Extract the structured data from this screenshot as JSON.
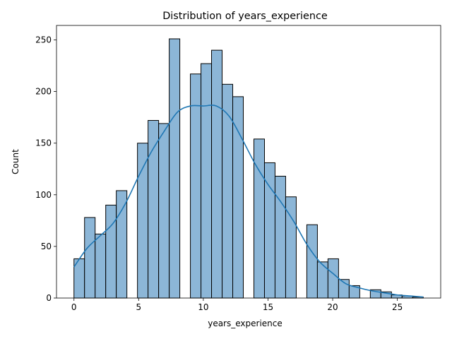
{
  "chart_data": {
    "type": "bar",
    "title": "Distribution of years_experience",
    "xlabel": "years_experience",
    "ylabel": "Count",
    "xlim": [
      -1.35,
      28.35
    ],
    "ylim": [
      0,
      264
    ],
    "xticks": [
      0,
      5,
      10,
      15,
      20,
      25
    ],
    "yticks": [
      0,
      50,
      100,
      150,
      200,
      250
    ],
    "bin_width": 0.818,
    "bins": [
      {
        "x0": 0.0,
        "count": 38
      },
      {
        "x0": 0.818,
        "count": 78
      },
      {
        "x0": 1.636,
        "count": 62
      },
      {
        "x0": 2.455,
        "count": 90
      },
      {
        "x0": 3.273,
        "count": 104
      },
      {
        "x0": 4.909,
        "count": 150
      },
      {
        "x0": 5.727,
        "count": 172
      },
      {
        "x0": 6.545,
        "count": 169
      },
      {
        "x0": 7.364,
        "count": 251
      },
      {
        "x0": 9.0,
        "count": 217
      },
      {
        "x0": 9.818,
        "count": 227
      },
      {
        "x0": 10.636,
        "count": 240
      },
      {
        "x0": 11.455,
        "count": 207
      },
      {
        "x0": 12.273,
        "count": 195
      },
      {
        "x0": 13.909,
        "count": 154
      },
      {
        "x0": 14.727,
        "count": 131
      },
      {
        "x0": 15.545,
        "count": 118
      },
      {
        "x0": 16.364,
        "count": 98
      },
      {
        "x0": 18.0,
        "count": 71
      },
      {
        "x0": 18.818,
        "count": 35
      },
      {
        "x0": 19.636,
        "count": 38
      },
      {
        "x0": 20.455,
        "count": 18
      },
      {
        "x0": 21.273,
        "count": 12
      },
      {
        "x0": 22.909,
        "count": 8
      },
      {
        "x0": 23.727,
        "count": 6
      },
      {
        "x0": 24.545,
        "count": 3
      },
      {
        "x0": 25.364,
        "count": 2
      },
      {
        "x0": 26.182,
        "count": 1
      }
    ],
    "kde": {
      "x": [
        0,
        1,
        2,
        3,
        4,
        5,
        6,
        7,
        8,
        9,
        10,
        11,
        12,
        13,
        14,
        15,
        16,
        17,
        18,
        19,
        20,
        21,
        22,
        23,
        24,
        25,
        26,
        27
      ],
      "y": [
        30,
        48,
        60,
        72,
        92,
        118,
        142,
        162,
        180,
        186,
        186,
        186,
        176,
        154,
        130,
        110,
        93,
        74,
        52,
        35,
        24,
        14,
        10,
        7,
        5,
        3,
        2,
        1
      ]
    },
    "colors": {
      "bar_fill": "#8cb6d7",
      "bar_edge": "#000000",
      "kde_line": "#1f77b4"
    },
    "grid": false,
    "legend": "none"
  }
}
